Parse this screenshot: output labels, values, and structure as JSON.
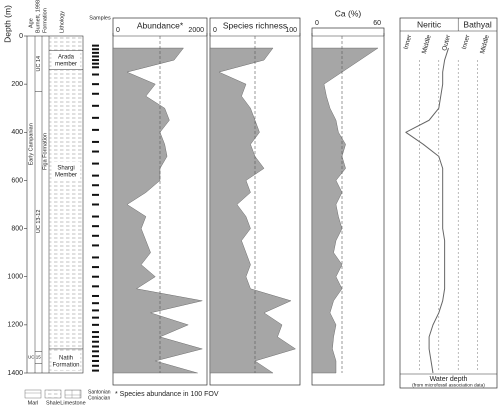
{
  "chart_data": {
    "type": "well-log",
    "ylabel": "Depth (m)",
    "ylim": [
      0,
      1400
    ],
    "yticks": [
      0,
      200,
      400,
      600,
      800,
      1000,
      1200,
      1400
    ],
    "depth": [
      50,
      100,
      150,
      200,
      250,
      300,
      350,
      400,
      450,
      500,
      550,
      600,
      650,
      700,
      750,
      800,
      850,
      900,
      950,
      1000,
      1050,
      1100,
      1150,
      1200,
      1250,
      1300,
      1350,
      1400
    ],
    "column": {
      "age_header": "Age",
      "zone_header": "Burnett, 1998 zonation",
      "formation_header": "Formation",
      "lithology_header": "Lithology",
      "samples_header": "Samples",
      "age": "Early Campanian",
      "formation": "Figa Formation",
      "zones": [
        {
          "label": "UC 14",
          "top": 0,
          "base": 230
        },
        {
          "label": "UC 13-12",
          "top": 230,
          "base": 1310
        },
        {
          "label": "UC 15",
          "top": 1310,
          "base": 1360
        }
      ],
      "members": [
        {
          "label": "Arada member",
          "top": 60,
          "base": 140
        },
        {
          "label": "Shargi Member",
          "top": 140,
          "base": 1300
        },
        {
          "label": "Natih Formation",
          "top": 1300,
          "base": 1400
        }
      ],
      "samples": [
        40,
        55,
        70,
        85,
        100,
        115,
        130,
        160,
        200,
        240,
        290,
        340,
        390,
        440,
        480,
        530,
        580,
        620,
        660,
        700,
        750,
        790,
        830,
        870,
        920,
        960,
        1000,
        1040,
        1080,
        1110,
        1140,
        1170,
        1200,
        1230,
        1250,
        1270,
        1290,
        1310,
        1330,
        1350,
        1370,
        1390
      ]
    },
    "panels": [
      {
        "title": "Abundance*",
        "xlim": [
          0,
          2000
        ],
        "xticks": [
          0,
          2000
        ],
        "reference": 1000,
        "color": "#a6a6a6",
        "values": [
          1500,
          1300,
          300,
          900,
          700,
          1100,
          1200,
          1000,
          1100,
          1150,
          1000,
          1000,
          700,
          300,
          700,
          600,
          700,
          800,
          600,
          900,
          500,
          1900,
          800,
          1600,
          1000,
          1900,
          900,
          1800
        ]
      },
      {
        "title": "Species richness",
        "xlim": [
          0,
          100
        ],
        "xticks": [
          0,
          100
        ],
        "reference": 50,
        "color": "#a6a6a6",
        "values": [
          70,
          60,
          10,
          40,
          35,
          45,
          50,
          55,
          45,
          50,
          60,
          40,
          45,
          30,
          40,
          45,
          35,
          40,
          45,
          40,
          45,
          90,
          60,
          80,
          75,
          95,
          50,
          70
        ]
      },
      {
        "title": "Ca (%)",
        "xlim": [
          0,
          60
        ],
        "xticks": [
          0,
          60
        ],
        "reference": 25,
        "color": "#a6a6a6",
        "values": [
          55,
          40,
          25,
          10,
          12,
          15,
          20,
          22,
          28,
          25,
          28,
          20,
          25,
          20,
          22,
          25,
          20,
          18,
          25,
          20,
          25,
          18,
          15,
          20,
          18,
          17,
          20,
          20
        ]
      }
    ],
    "water": {
      "groups": [
        {
          "label": "Neritic",
          "zones": [
            "Inner",
            "Middle",
            "Outer"
          ]
        },
        {
          "label": "Bathyal",
          "zones": [
            "Inner",
            "Middle"
          ]
        }
      ],
      "xlim": [
        0,
        5
      ],
      "values": [
        2.5,
        2.3,
        2.2,
        2.2,
        2.1,
        2.0,
        1.5,
        0.3,
        1.2,
        2.0,
        2.2,
        2.2,
        2.2,
        2.2,
        2.2,
        2.2,
        2.3,
        2.3,
        2.3,
        2.3,
        2.3,
        2.2,
        2.0,
        1.7,
        1.5,
        1.5,
        1.6,
        1.7
      ],
      "caption": "Water depth",
      "subcaption": "(from microfossil association data)"
    },
    "legend": [
      "Marl",
      "Shale",
      "Limestone"
    ],
    "age_legend": [
      "Santonian",
      "Coniacian"
    ],
    "footnote": "* Species abundance in 100 FOV"
  }
}
